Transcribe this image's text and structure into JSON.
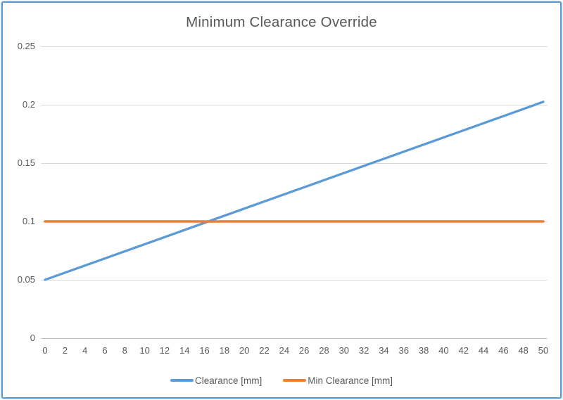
{
  "panel": {
    "border_color": "#5b9bd5",
    "background": "#ffffff"
  },
  "chart_data": {
    "type": "line",
    "title": "Minimum Clearance Override",
    "xlabel": "",
    "ylabel": "",
    "xlim": [
      0,
      50
    ],
    "ylim": [
      0,
      0.25
    ],
    "x_tick_labels": [
      "0",
      "2",
      "4",
      "6",
      "8",
      "10",
      "12",
      "14",
      "16",
      "18",
      "20",
      "22",
      "24",
      "26",
      "28",
      "30",
      "32",
      "34",
      "36",
      "38",
      "40",
      "42",
      "44",
      "46",
      "48",
      "50"
    ],
    "y_tick_labels": [
      "0",
      "0.05",
      "0.1",
      "0.15",
      "0.2",
      "0.25"
    ],
    "grid": "horizontal-only",
    "legend_position": "bottom-center",
    "series": [
      {
        "name": "Clearance [mm]",
        "color": "#5b9bd5",
        "points": [
          {
            "x": 0,
            "y": 0.05
          },
          {
            "x": 50,
            "y": 0.2025
          }
        ],
        "shape": "straight-line"
      },
      {
        "name": "Min Clearance [mm]",
        "color": "#ed7d31",
        "points": [
          {
            "x": 0,
            "y": 0.1
          },
          {
            "x": 50,
            "y": 0.1
          }
        ],
        "shape": "straight-line"
      }
    ],
    "colors": {
      "gridline": "#d9d9d9",
      "axis_line": "#bfbfbf",
      "text": "#595959"
    }
  }
}
